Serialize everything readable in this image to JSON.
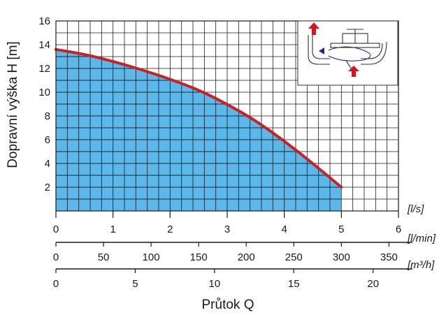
{
  "chart_data": {
    "type": "area",
    "ylabel": "Dopravní výška H [m]",
    "xlabel": "Průtok Q",
    "xlim": [
      0,
      6
    ],
    "ylim": [
      0,
      16
    ],
    "y_ticks": [
      "2",
      "4",
      "6",
      "8",
      "10",
      "12",
      "14",
      "16"
    ],
    "x_scales": [
      {
        "unit": "[l/s]",
        "max": 6,
        "ticks": [
          "0",
          "1",
          "2",
          "3",
          "4",
          "5",
          "6"
        ]
      },
      {
        "unit": "[l/min]",
        "max": 360,
        "ticks": [
          "0",
          "50",
          "100",
          "150",
          "200",
          "250",
          "300",
          "350"
        ]
      },
      {
        "unit": "[m³/h]",
        "max": 21.6,
        "ticks": [
          "0",
          "5",
          "10",
          "15",
          "20"
        ]
      }
    ],
    "series": [
      {
        "x": [
          0,
          0.5,
          1,
          1.5,
          2,
          2.5,
          3,
          3.5,
          4,
          4.5,
          5
        ],
        "y": [
          13.6,
          13.2,
          12.6,
          11.9,
          11.1,
          10.2,
          9.0,
          7.6,
          5.9,
          4.0,
          2.0
        ]
      }
    ],
    "grid": true,
    "colors": {
      "fill": "#5bb8e8",
      "line": "#cc1f26",
      "grid": "#1a1a1a",
      "arrow": "#d8141c"
    }
  }
}
